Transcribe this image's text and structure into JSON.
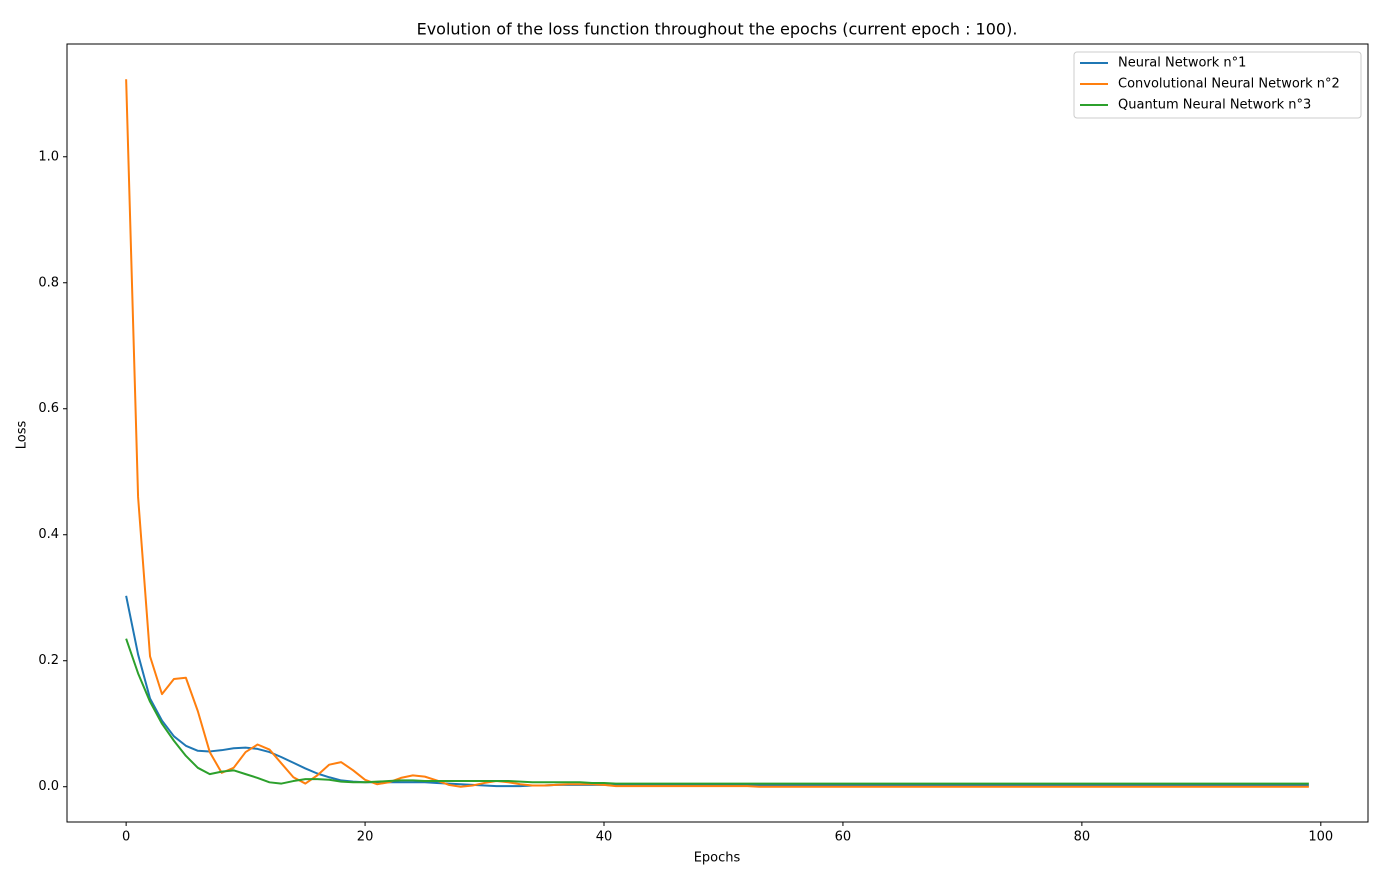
{
  "chart_data": {
    "type": "line",
    "title": "Evolution of the loss function throughout the epochs (current epoch : 100).",
    "x_label": "Epochs",
    "y_label": "Loss",
    "x": [
      0,
      1,
      2,
      3,
      4,
      5,
      6,
      7,
      8,
      9,
      10,
      11,
      12,
      13,
      14,
      15,
      16,
      17,
      18,
      19,
      20,
      21,
      22,
      23,
      24,
      25,
      26,
      27,
      28,
      29,
      30,
      31,
      32,
      33,
      34,
      35,
      36,
      37,
      38,
      39,
      40,
      41,
      42,
      43,
      44,
      45,
      46,
      47,
      48,
      49,
      50,
      51,
      52,
      53,
      54,
      55,
      56,
      57,
      58,
      59,
      60,
      61,
      62,
      63,
      64,
      65,
      66,
      67,
      68,
      69,
      70,
      71,
      72,
      73,
      74,
      75,
      76,
      77,
      78,
      79,
      80,
      81,
      82,
      83,
      84,
      85,
      86,
      87,
      88,
      89,
      90,
      91,
      92,
      93,
      94,
      95,
      96,
      97,
      98,
      99
    ],
    "series": [
      {
        "name": "Neural Network n°1",
        "color": "#1f77b4",
        "values": [
          0.303,
          0.21,
          0.14,
          0.105,
          0.08,
          0.065,
          0.057,
          0.056,
          0.058,
          0.061,
          0.062,
          0.06,
          0.055,
          0.047,
          0.038,
          0.029,
          0.021,
          0.015,
          0.01,
          0.008,
          0.007,
          0.007,
          0.007,
          0.007,
          0.007,
          0.007,
          0.006,
          0.005,
          0.004,
          0.003,
          0.002,
          0.001,
          0.001,
          0.001,
          0.002,
          0.002,
          0.003,
          0.003,
          0.003,
          0.003,
          0.003,
          0.002,
          0.002,
          0.002,
          0.002,
          0.002,
          0.002,
          0.002,
          0.002,
          0.002,
          0.002,
          0.002,
          0.002,
          0.002,
          0.002,
          0.002,
          0.002,
          0.002,
          0.002,
          0.002,
          0.002,
          0.002,
          0.002,
          0.002,
          0.002,
          0.002,
          0.002,
          0.002,
          0.002,
          0.002,
          0.002,
          0.002,
          0.002,
          0.002,
          0.002,
          0.002,
          0.002,
          0.002,
          0.002,
          0.002,
          0.002,
          0.002,
          0.002,
          0.002,
          0.002,
          0.002,
          0.002,
          0.002,
          0.002,
          0.002,
          0.002,
          0.002,
          0.002,
          0.002,
          0.002,
          0.002,
          0.002,
          0.002,
          0.002,
          0.002
        ]
      },
      {
        "name": "Convolutional Neural Network n°2",
        "color": "#ff7f0e",
        "values": [
          1.123,
          0.46,
          0.207,
          0.147,
          0.171,
          0.173,
          0.12,
          0.055,
          0.022,
          0.03,
          0.055,
          0.067,
          0.059,
          0.037,
          0.015,
          0.005,
          0.018,
          0.035,
          0.039,
          0.026,
          0.011,
          0.004,
          0.007,
          0.014,
          0.018,
          0.016,
          0.01,
          0.003,
          0,
          0.002,
          0.006,
          0.009,
          0.007,
          0.004,
          0.002,
          0.002,
          0.003,
          0.004,
          0.004,
          0.004,
          0.003,
          0.001,
          0.001,
          0.001,
          0.001,
          0.001,
          0.001,
          0.001,
          0.001,
          0.001,
          0.001,
          0.001,
          0.001,
          0,
          0,
          0,
          0,
          0,
          0,
          0,
          0,
          0,
          0,
          0,
          0,
          0,
          0,
          0,
          0,
          0,
          0,
          0,
          0,
          0,
          0,
          0,
          0,
          0,
          0,
          0,
          0,
          0,
          0,
          0,
          0,
          0,
          0,
          0,
          0,
          0,
          0,
          0,
          0,
          0,
          0,
          0,
          0,
          0,
          0,
          0
        ]
      },
      {
        "name": "Quantum Neural Network n°3",
        "color": "#2ca02c",
        "values": [
          0.235,
          0.18,
          0.135,
          0.1,
          0.073,
          0.049,
          0.03,
          0.02,
          0.024,
          0.026,
          0.02,
          0.014,
          0.007,
          0.005,
          0.009,
          0.012,
          0.012,
          0.011,
          0.008,
          0.007,
          0.007,
          0.008,
          0.009,
          0.01,
          0.01,
          0.009,
          0.009,
          0.009,
          0.009,
          0.009,
          0.009,
          0.009,
          0.009,
          0.008,
          0.007,
          0.007,
          0.007,
          0.007,
          0.007,
          0.006,
          0.006,
          0.005,
          0.005,
          0.005,
          0.005,
          0.005,
          0.005,
          0.005,
          0.005,
          0.005,
          0.005,
          0.005,
          0.005,
          0.005,
          0.005,
          0.005,
          0.005,
          0.005,
          0.005,
          0.005,
          0.005,
          0.005,
          0.005,
          0.005,
          0.005,
          0.005,
          0.005,
          0.005,
          0.005,
          0.005,
          0.005,
          0.005,
          0.005,
          0.005,
          0.005,
          0.005,
          0.005,
          0.005,
          0.005,
          0.005,
          0.005,
          0.005,
          0.005,
          0.005,
          0.005,
          0.005,
          0.005,
          0.005,
          0.005,
          0.005,
          0.005,
          0.005,
          0.005,
          0.005,
          0.005,
          0.005,
          0.005,
          0.005,
          0.005,
          0.005
        ]
      }
    ],
    "xlim": [
      -4.95,
      103.95
    ],
    "ylim": [
      -0.056,
      1.179
    ],
    "xticks": [
      0,
      20,
      40,
      60,
      80,
      100
    ],
    "yticks": [
      {
        "value": 0,
        "label": "0.0"
      },
      0.2,
      0.4,
      0.6,
      0.8,
      {
        "value": 1,
        "label": "1.0"
      }
    ],
    "grid": false,
    "legend": "upper right"
  }
}
